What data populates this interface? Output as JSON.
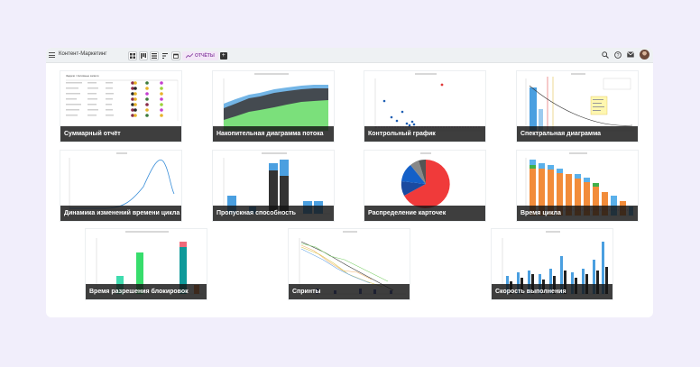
{
  "app": {
    "title": "Контент-Маркетинг"
  },
  "toolbar": {
    "view_icons": [
      "grid-view-icon",
      "board-view-icon",
      "list-view-icon",
      "filter-icon",
      "calendar-icon"
    ],
    "reports_tab_label": "ОТЧЁТЫ",
    "add_label": "+"
  },
  "header_icons": [
    "search-icon",
    "help-icon",
    "mail-icon",
    "avatar"
  ],
  "colors": {
    "accent": "#8e4aa6",
    "background": "#f1eefb",
    "label_overlay": "#141414"
  },
  "reports": [
    {
      "label": "Суммарный отчёт"
    },
    {
      "label": "Накопительная диаграмма потока"
    },
    {
      "label": "Контрольный график"
    },
    {
      "label": "Спектральная диаграмма"
    },
    {
      "label": "Динамика изменений времени цикла"
    },
    {
      "label": "Пропускная способность"
    },
    {
      "label": "Распределение карточек"
    },
    {
      "label": "Время цикла"
    },
    {
      "label": "Время разрешения блокировок"
    },
    {
      "label": "Спринты"
    },
    {
      "label": "Скорость выполнения"
    }
  ]
}
